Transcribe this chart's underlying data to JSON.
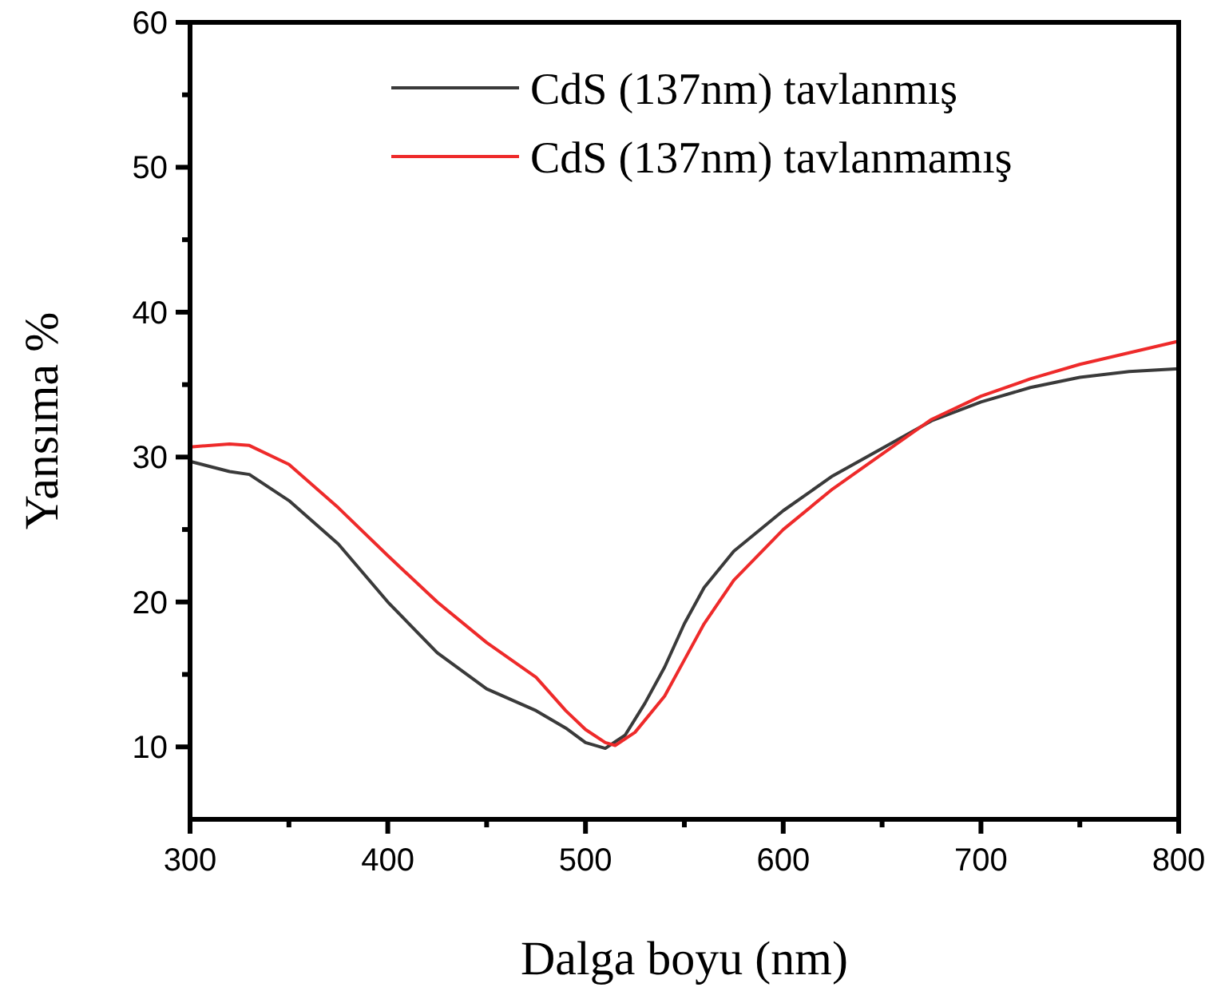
{
  "chart_data": {
    "type": "line",
    "xlabel": "Dalga boyu (nm)",
    "ylabel": "Yansıma %",
    "xlim": [
      300,
      800
    ],
    "ylim": [
      5,
      60
    ],
    "xticks": [
      300,
      {
        "value": 350,
        "label": null
      },
      400,
      {
        "value": 450,
        "label": null
      },
      500,
      {
        "value": 550,
        "label": null
      },
      600,
      {
        "value": 650,
        "label": null
      },
      700,
      {
        "value": 750,
        "label": null
      },
      800
    ],
    "yticks": [
      10,
      {
        "value": 15,
        "label": null
      },
      20,
      {
        "value": 25,
        "label": null
      },
      30,
      {
        "value": 35,
        "label": null
      },
      40,
      {
        "value": 45,
        "label": null
      },
      50,
      {
        "value": 55,
        "label": null
      },
      60
    ],
    "legend": "top right",
    "line_style": "solid",
    "grid": false,
    "series": [
      {
        "name": "CdS (137nm) tavlanmış",
        "color": "#3a3a3a",
        "x": [
          300,
          320,
          330,
          350,
          375,
          400,
          425,
          450,
          475,
          490,
          500,
          510,
          520,
          530,
          540,
          550,
          560,
          575,
          600,
          625,
          650,
          675,
          700,
          725,
          750,
          775,
          800
        ],
        "values": [
          29.7,
          29.0,
          28.8,
          27,
          24,
          20,
          16.5,
          14,
          12.5,
          11.3,
          10.3,
          9.9,
          10.8,
          13,
          15.5,
          18.5,
          21,
          23.5,
          26.3,
          28.7,
          30.6,
          32.5,
          33.8,
          34.8,
          35.5,
          35.9,
          36.1
        ]
      },
      {
        "name": "CdS (137nm) tavlanmamış",
        "color": "#ee2a2a",
        "x": [
          300,
          320,
          330,
          350,
          375,
          400,
          425,
          450,
          475,
          490,
          500,
          510,
          515,
          525,
          540,
          550,
          560,
          575,
          600,
          625,
          650,
          675,
          700,
          725,
          750,
          775,
          800
        ],
        "values": [
          30.7,
          30.9,
          30.8,
          29.5,
          26.5,
          23.2,
          20,
          17.2,
          14.8,
          12.5,
          11.2,
          10.3,
          10.1,
          11,
          13.5,
          16,
          18.5,
          21.5,
          25,
          27.8,
          30.2,
          32.6,
          34.2,
          35.4,
          36.4,
          37.2,
          38
        ]
      }
    ]
  }
}
